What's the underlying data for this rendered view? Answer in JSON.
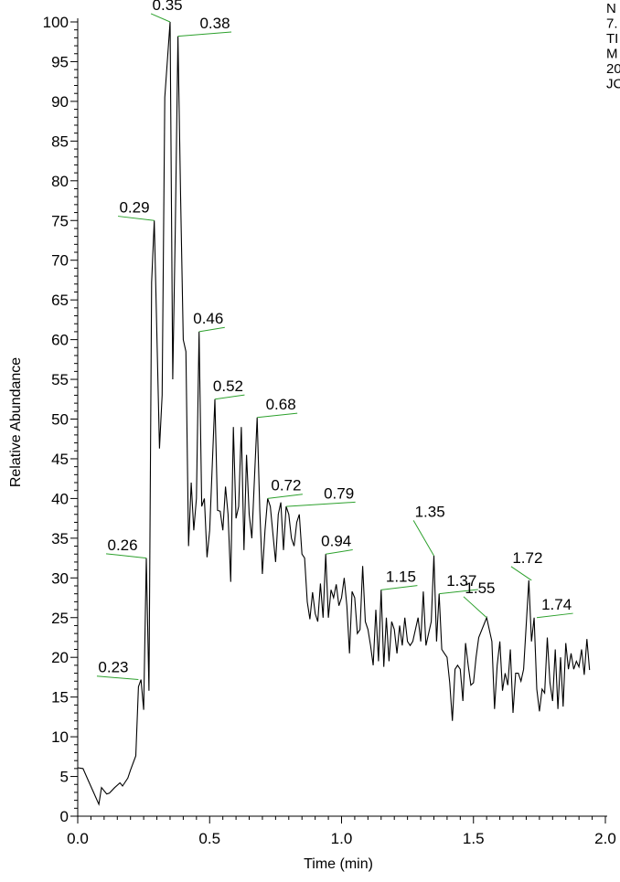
{
  "header_info": [
    "N",
    "7.",
    "TI",
    "M",
    "20",
    "JC"
  ],
  "chart_data": {
    "type": "line",
    "xlabel": "Time (min)",
    "ylabel": "Relative Abundance",
    "xlim": [
      0,
      2.0
    ],
    "ylim": [
      0,
      100
    ],
    "x_ticks": [
      0.0,
      0.5,
      1.0,
      1.5,
      2.0
    ],
    "x_tick_labels": [
      "0.0",
      "0.5",
      "1.0",
      "1.5",
      "2.0"
    ],
    "y_ticks": [
      0,
      5,
      10,
      15,
      20,
      25,
      30,
      35,
      40,
      45,
      50,
      55,
      60,
      65,
      70,
      75,
      80,
      85,
      90,
      95,
      100
    ],
    "y_tick_labels": [
      "0",
      "5",
      "10",
      "15",
      "20",
      "25",
      "30",
      "35",
      "40",
      "45",
      "50",
      "55",
      "60",
      "65",
      "70",
      "75",
      "80",
      "85",
      "90",
      "95",
      "100"
    ],
    "grid": false,
    "line_color": "#000000",
    "label_leader_color": "#2ca02c",
    "series": [
      {
        "points": [
          [
            0.0,
            6.1
          ],
          [
            0.02,
            6.0
          ],
          [
            0.04,
            4.5
          ],
          [
            0.06,
            3.0
          ],
          [
            0.08,
            1.5
          ],
          [
            0.09,
            3.6
          ],
          [
            0.11,
            2.8
          ],
          [
            0.12,
            2.9
          ],
          [
            0.14,
            3.6
          ],
          [
            0.16,
            4.2
          ],
          [
            0.17,
            3.8
          ],
          [
            0.19,
            4.8
          ],
          [
            0.2,
            5.8
          ],
          [
            0.22,
            7.6
          ],
          [
            0.23,
            16.3
          ],
          [
            0.24,
            17.2
          ],
          [
            0.25,
            13.4
          ],
          [
            0.26,
            32.5
          ],
          [
            0.27,
            15.8
          ],
          [
            0.28,
            67.2
          ],
          [
            0.29,
            75.0
          ],
          [
            0.31,
            46.3
          ],
          [
            0.32,
            53.0
          ],
          [
            0.33,
            90.5
          ],
          [
            0.35,
            100.0
          ],
          [
            0.36,
            55.0
          ],
          [
            0.37,
            74.0
          ],
          [
            0.38,
            98.2
          ],
          [
            0.39,
            78.0
          ],
          [
            0.4,
            60.0
          ],
          [
            0.41,
            58.5
          ],
          [
            0.42,
            34.0
          ],
          [
            0.43,
            42.0
          ],
          [
            0.44,
            36.0
          ],
          [
            0.45,
            40.0
          ],
          [
            0.46,
            61.0
          ],
          [
            0.47,
            39.0
          ],
          [
            0.48,
            40.0
          ],
          [
            0.49,
            32.6
          ],
          [
            0.5,
            36.0
          ],
          [
            0.52,
            52.5
          ],
          [
            0.53,
            38.5
          ],
          [
            0.54,
            38.4
          ],
          [
            0.55,
            36.0
          ],
          [
            0.56,
            41.5
          ],
          [
            0.57,
            38.0
          ],
          [
            0.58,
            29.5
          ],
          [
            0.59,
            49.0
          ],
          [
            0.6,
            37.5
          ],
          [
            0.61,
            39.0
          ],
          [
            0.62,
            49.0
          ],
          [
            0.63,
            33.5
          ],
          [
            0.64,
            45.5
          ],
          [
            0.65,
            38.0
          ],
          [
            0.66,
            35.0
          ],
          [
            0.68,
            50.2
          ],
          [
            0.69,
            38.5
          ],
          [
            0.7,
            30.5
          ],
          [
            0.71,
            36.0
          ],
          [
            0.72,
            40.0
          ],
          [
            0.73,
            39.0
          ],
          [
            0.74,
            35.5
          ],
          [
            0.75,
            32.0
          ],
          [
            0.76,
            38.0
          ],
          [
            0.77,
            39.5
          ],
          [
            0.78,
            33.5
          ],
          [
            0.79,
            39.0
          ],
          [
            0.8,
            38.0
          ],
          [
            0.81,
            35.0
          ],
          [
            0.82,
            34.0
          ],
          [
            0.83,
            37.0
          ],
          [
            0.84,
            38.0
          ],
          [
            0.85,
            33.0
          ],
          [
            0.86,
            32.5
          ],
          [
            0.87,
            27.0
          ],
          [
            0.88,
            24.8
          ],
          [
            0.89,
            28.2
          ],
          [
            0.9,
            25.5
          ],
          [
            0.91,
            24.5
          ],
          [
            0.92,
            29.3
          ],
          [
            0.93,
            25.0
          ],
          [
            0.94,
            33.0
          ],
          [
            0.95,
            25.0
          ],
          [
            0.96,
            28.5
          ],
          [
            0.97,
            27.5
          ],
          [
            0.98,
            29.2
          ],
          [
            0.99,
            26.5
          ],
          [
            1.0,
            27.5
          ],
          [
            1.01,
            30.0
          ],
          [
            1.02,
            26.5
          ],
          [
            1.03,
            20.5
          ],
          [
            1.04,
            28.3
          ],
          [
            1.05,
            27.5
          ],
          [
            1.06,
            23.0
          ],
          [
            1.07,
            23.5
          ],
          [
            1.08,
            31.5
          ],
          [
            1.09,
            24.5
          ],
          [
            1.1,
            23.5
          ],
          [
            1.11,
            21.5
          ],
          [
            1.12,
            19.0
          ],
          [
            1.13,
            26.0
          ],
          [
            1.14,
            19.5
          ],
          [
            1.15,
            28.5
          ],
          [
            1.16,
            18.8
          ],
          [
            1.17,
            25.0
          ],
          [
            1.18,
            19.5
          ],
          [
            1.19,
            24.5
          ],
          [
            1.2,
            23.5
          ],
          [
            1.21,
            20.5
          ],
          [
            1.22,
            24.0
          ],
          [
            1.23,
            21.5
          ],
          [
            1.24,
            25.0
          ],
          [
            1.25,
            22.0
          ],
          [
            1.26,
            21.5
          ],
          [
            1.27,
            22.0
          ],
          [
            1.28,
            23.5
          ],
          [
            1.29,
            25.0
          ],
          [
            1.3,
            22.0
          ],
          [
            1.31,
            28.3
          ],
          [
            1.32,
            21.5
          ],
          [
            1.33,
            23.0
          ],
          [
            1.34,
            24.5
          ],
          [
            1.35,
            32.8
          ],
          [
            1.36,
            22.0
          ],
          [
            1.37,
            28.0
          ],
          [
            1.38,
            21.0
          ],
          [
            1.39,
            20.5
          ],
          [
            1.4,
            20.0
          ],
          [
            1.41,
            16.8
          ],
          [
            1.42,
            12.0
          ],
          [
            1.43,
            18.5
          ],
          [
            1.44,
            19.0
          ],
          [
            1.45,
            18.5
          ],
          [
            1.46,
            14.5
          ],
          [
            1.47,
            21.8
          ],
          [
            1.48,
            19.0
          ],
          [
            1.49,
            16.5
          ],
          [
            1.5,
            16.8
          ],
          [
            1.51,
            20.0
          ],
          [
            1.52,
            22.5
          ],
          [
            1.55,
            25.0
          ],
          [
            1.57,
            22.0
          ],
          [
            1.58,
            13.5
          ],
          [
            1.59,
            19.0
          ],
          [
            1.6,
            22.0
          ],
          [
            1.61,
            15.8
          ],
          [
            1.62,
            18.0
          ],
          [
            1.63,
            16.5
          ],
          [
            1.64,
            21.0
          ],
          [
            1.65,
            13.0
          ],
          [
            1.66,
            18.0
          ],
          [
            1.67,
            18.0
          ],
          [
            1.68,
            17.0
          ],
          [
            1.69,
            18.5
          ],
          [
            1.71,
            29.7
          ],
          [
            1.72,
            22.0
          ],
          [
            1.73,
            25.0
          ],
          [
            1.74,
            16.0
          ],
          [
            1.75,
            13.2
          ],
          [
            1.76,
            16.0
          ],
          [
            1.77,
            15.5
          ],
          [
            1.78,
            22.5
          ],
          [
            1.79,
            16.8
          ],
          [
            1.8,
            14.5
          ],
          [
            1.81,
            21.0
          ],
          [
            1.82,
            13.5
          ],
          [
            1.83,
            20.0
          ],
          [
            1.84,
            13.8
          ],
          [
            1.85,
            21.8
          ],
          [
            1.86,
            18.5
          ],
          [
            1.87,
            20.5
          ],
          [
            1.88,
            18.5
          ],
          [
            1.89,
            19.5
          ],
          [
            1.9,
            18.8
          ],
          [
            1.91,
            21.0
          ],
          [
            1.92,
            17.8
          ],
          [
            1.93,
            22.3
          ],
          [
            1.94,
            18.4
          ]
        ]
      }
    ],
    "annotations": [
      {
        "label": "0.23",
        "x": 0.23,
        "y": 17.2,
        "text_x": 0.135,
        "text_y": 18.1
      },
      {
        "label": "0.26",
        "x": 0.26,
        "y": 32.5,
        "text_x": 0.17,
        "text_y": 33.5
      },
      {
        "label": "0.29",
        "x": 0.29,
        "y": 75.0,
        "text_x": 0.215,
        "text_y": 76.0
      },
      {
        "label": "0.35",
        "x": 0.35,
        "y": 100.0,
        "text_x": 0.34,
        "text_y": 101.5
      },
      {
        "label": "0.38",
        "x": 0.38,
        "y": 98.2,
        "text_x": 0.52,
        "text_y": 99.2
      },
      {
        "label": "0.46",
        "x": 0.46,
        "y": 61.0,
        "text_x": 0.495,
        "text_y": 62.0
      },
      {
        "label": "0.52",
        "x": 0.52,
        "y": 52.5,
        "text_x": 0.57,
        "text_y": 53.5
      },
      {
        "label": "0.68",
        "x": 0.68,
        "y": 50.2,
        "text_x": 0.77,
        "text_y": 51.2
      },
      {
        "label": "0.72",
        "x": 0.72,
        "y": 40.0,
        "text_x": 0.79,
        "text_y": 41.0
      },
      {
        "label": "0.79",
        "x": 0.79,
        "y": 39.0,
        "text_x": 0.99,
        "text_y": 40.0
      },
      {
        "label": "0.94",
        "x": 0.94,
        "y": 33.0,
        "text_x": 0.98,
        "text_y": 34.0
      },
      {
        "label": "1.15",
        "x": 1.15,
        "y": 28.5,
        "text_x": 1.225,
        "text_y": 29.5
      },
      {
        "label": "1.35",
        "x": 1.35,
        "y": 32.8,
        "text_x": 1.335,
        "text_y": 37.7
      },
      {
        "label": "1.37",
        "x": 1.37,
        "y": 28.0,
        "text_x": 1.455,
        "text_y": 29.0
      },
      {
        "label": "1.55",
        "x": 1.55,
        "y": 25.0,
        "text_x": 1.525,
        "text_y": 28.1
      },
      {
        "label": "1.72",
        "x": 1.72,
        "y": 29.7,
        "text_x": 1.705,
        "text_y": 31.9
      },
      {
        "label": "1.74",
        "x": 1.74,
        "y": 25.0,
        "text_x": 1.815,
        "text_y": 26.0
      }
    ]
  }
}
